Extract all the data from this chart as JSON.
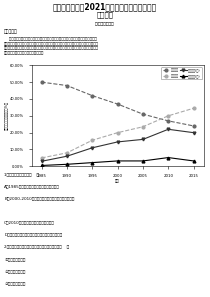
{
  "title_main": "内蒙古赤峰二中2021届高一下学期第一次月考",
  "title_sub": "地理试题",
  "title_vol": "第I卷（选择题）",
  "section": "一、单选题",
  "chart_ylabel": "流动人口规模结构比例（%）",
  "chart_xlabel": "年份",
  "years": [
    1985,
    1990,
    1995,
    2000,
    2005,
    2010,
    2015
  ],
  "series1_name": "市际流动",
  "series2_name": "省际流动",
  "series3_name": "省际流动(女)",
  "series4_name": "省际流动(男)",
  "series1": [
    500,
    480,
    420,
    370,
    310,
    270,
    240
  ],
  "series2": [
    50,
    80,
    155,
    200,
    235,
    300,
    345
  ],
  "series3": [
    30,
    60,
    110,
    145,
    160,
    220,
    200
  ],
  "series4": [
    5,
    12,
    22,
    32,
    32,
    52,
    32
  ],
  "ytick_labels": [
    "0.00%",
    "10.00%",
    "20.00%",
    "30.00%",
    "40.00%",
    "50.00%",
    "60.00%"
  ],
  "q1_text": "1、下列叙述正确的是（    ）",
  "q1_A": "A．1985年以后，市际流动规模整体大幅上升",
  "q1_B": "B．2000-2010年大量农民同年外出务工规模有所增加",
  "q1_C": "C．2010年至今，省际流动成为主导模式",
  "q1_D": "D．近年，市乡流动相比以人口流动模式与主要变至",
  "q2_text": "2、影响国家流动人口流动模式转变的主要原因是（    ）",
  "q2_A": "①社会经济的发展",
  "q2_B": "②国家政策的调整",
  "q2_C": "③区域经济的差别",
  "bg_color": "#ffffff",
  "text_color": "#000000"
}
